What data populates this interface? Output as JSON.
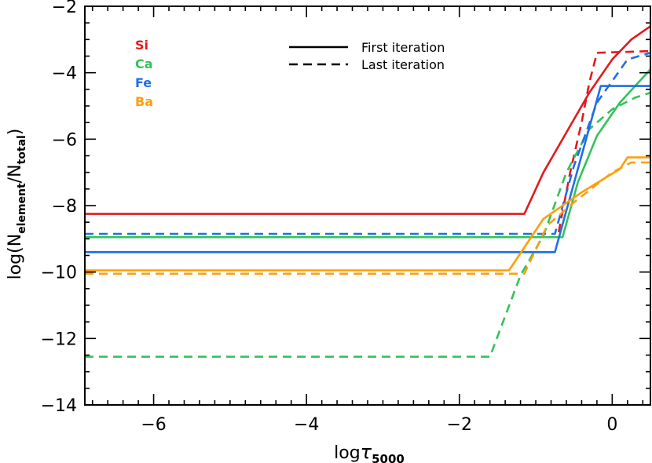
{
  "chart_data": {
    "type": "line",
    "xlabel_main": "log",
    "xlabel_greek": "τ",
    "xlabel_sub": "5000",
    "ylabel_parts": {
      "open": "log(N",
      "sub1": "element",
      "slash": "/N",
      "sub2": "total",
      "close": ")"
    },
    "xlim": [
      -6.9,
      0.5
    ],
    "ylim": [
      -14,
      -2
    ],
    "xticks": [
      -6,
      -4,
      -2,
      0
    ],
    "xtick_labels": [
      "−6",
      "−4",
      "−2",
      "0"
    ],
    "yticks": [
      -14,
      -12,
      -10,
      -8,
      -6,
      -4,
      -2
    ],
    "ytick_labels": [
      "−14",
      "−12",
      "−10",
      "−8",
      "−6",
      "−4",
      "−2"
    ],
    "legend": {
      "elements": [
        {
          "name": "Si",
          "color": "#e31a1c"
        },
        {
          "name": "Ca",
          "color": "#33c25a"
        },
        {
          "name": "Fe",
          "color": "#1f6fe5"
        },
        {
          "name": "Ba",
          "color": "#ff9e0a"
        }
      ],
      "styles": [
        {
          "label": "First iteration",
          "dash": "solid"
        },
        {
          "label": "Last iteration",
          "dash": "dashed"
        }
      ]
    },
    "series": [
      {
        "element": "Si",
        "iteration": "first",
        "color": "#e31a1c",
        "dash": "solid",
        "points": [
          [
            -6.9,
            -8.25
          ],
          [
            -1.15,
            -8.25
          ],
          [
            -0.9,
            -7.0
          ],
          [
            -0.6,
            -5.8
          ],
          [
            -0.3,
            -4.6
          ],
          [
            0.0,
            -3.6
          ],
          [
            0.25,
            -3.0
          ],
          [
            0.5,
            -2.6
          ]
        ]
      },
      {
        "element": "Si",
        "iteration": "last",
        "color": "#e31a1c",
        "dash": "dashed",
        "points": [
          [
            -0.7,
            -8.8
          ],
          [
            -0.55,
            -7.0
          ],
          [
            -0.4,
            -5.5
          ],
          [
            -0.3,
            -4.3
          ],
          [
            -0.2,
            -3.4
          ],
          [
            0.5,
            -3.35
          ]
        ]
      },
      {
        "element": "Ca",
        "iteration": "first",
        "color": "#33c25a",
        "dash": "solid",
        "points": [
          [
            -6.9,
            -8.95
          ],
          [
            -0.65,
            -8.95
          ],
          [
            -0.45,
            -7.3
          ],
          [
            -0.2,
            -5.9
          ],
          [
            0.1,
            -4.9
          ],
          [
            0.5,
            -3.9
          ]
        ]
      },
      {
        "element": "Ca",
        "iteration": "last",
        "color": "#33c25a",
        "dash": "dashed",
        "points": [
          [
            -6.9,
            -12.55
          ],
          [
            -1.6,
            -12.55
          ],
          [
            -1.2,
            -10.1
          ],
          [
            -0.9,
            -8.9
          ],
          [
            -0.6,
            -7.0
          ],
          [
            -0.3,
            -5.7
          ],
          [
            0.0,
            -5.1
          ],
          [
            0.3,
            -4.75
          ],
          [
            0.5,
            -4.6
          ]
        ]
      },
      {
        "element": "Fe",
        "iteration": "first",
        "color": "#1f6fe5",
        "dash": "solid",
        "points": [
          [
            -6.9,
            -9.4
          ],
          [
            -0.75,
            -9.4
          ],
          [
            -0.15,
            -4.4
          ],
          [
            0.5,
            -4.4
          ]
        ]
      },
      {
        "element": "Fe",
        "iteration": "last",
        "color": "#1f6fe5",
        "dash": "dashed",
        "points": [
          [
            -6.9,
            -8.85
          ],
          [
            -0.75,
            -8.85
          ],
          [
            -0.5,
            -6.8
          ],
          [
            -0.2,
            -4.9
          ],
          [
            0.2,
            -3.6
          ],
          [
            0.5,
            -3.4
          ]
        ]
      },
      {
        "element": "Ba",
        "iteration": "first",
        "color": "#ff9e0a",
        "dash": "solid",
        "points": [
          [
            -6.9,
            -9.95
          ],
          [
            -1.35,
            -9.95
          ],
          [
            -0.9,
            -8.4
          ],
          [
            -0.4,
            -7.6
          ],
          [
            0.1,
            -6.9
          ],
          [
            0.2,
            -6.55
          ],
          [
            0.5,
            -6.55
          ]
        ]
      },
      {
        "element": "Ba",
        "iteration": "last",
        "color": "#ff9e0a",
        "dash": "dashed",
        "points": [
          [
            -6.9,
            -10.05
          ],
          [
            -1.15,
            -10.05
          ],
          [
            -0.85,
            -8.6
          ],
          [
            -0.5,
            -7.9
          ],
          [
            0.0,
            -7.0
          ],
          [
            0.25,
            -6.7
          ],
          [
            0.5,
            -6.7
          ]
        ]
      }
    ]
  }
}
